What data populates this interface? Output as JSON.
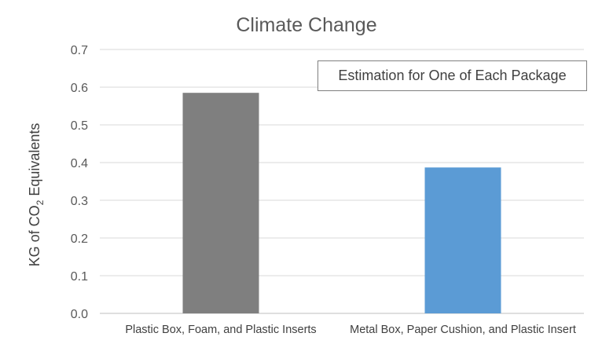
{
  "chart_data": {
    "type": "bar",
    "title": "Climate Change",
    "annotation": "Estimation for One of Each Package",
    "ylabel": {
      "prefix": "KG of CO",
      "subscript": "2",
      "suffix": " Equivalents"
    },
    "xlabel": "",
    "categories": [
      "Plastic Box, Foam, and Plastic Inserts",
      "Metal Box, Paper Cushion, and Plastic Insert"
    ],
    "values": [
      0.585,
      0.387
    ],
    "bar_colors": [
      "#7f7f7f",
      "#5b9bd5"
    ],
    "ylim": [
      0,
      0.7
    ],
    "yticks": [
      "0.0",
      "0.1",
      "0.2",
      "0.3",
      "0.4",
      "0.5",
      "0.6",
      "0.7"
    ],
    "grid": true,
    "legend": "none"
  }
}
